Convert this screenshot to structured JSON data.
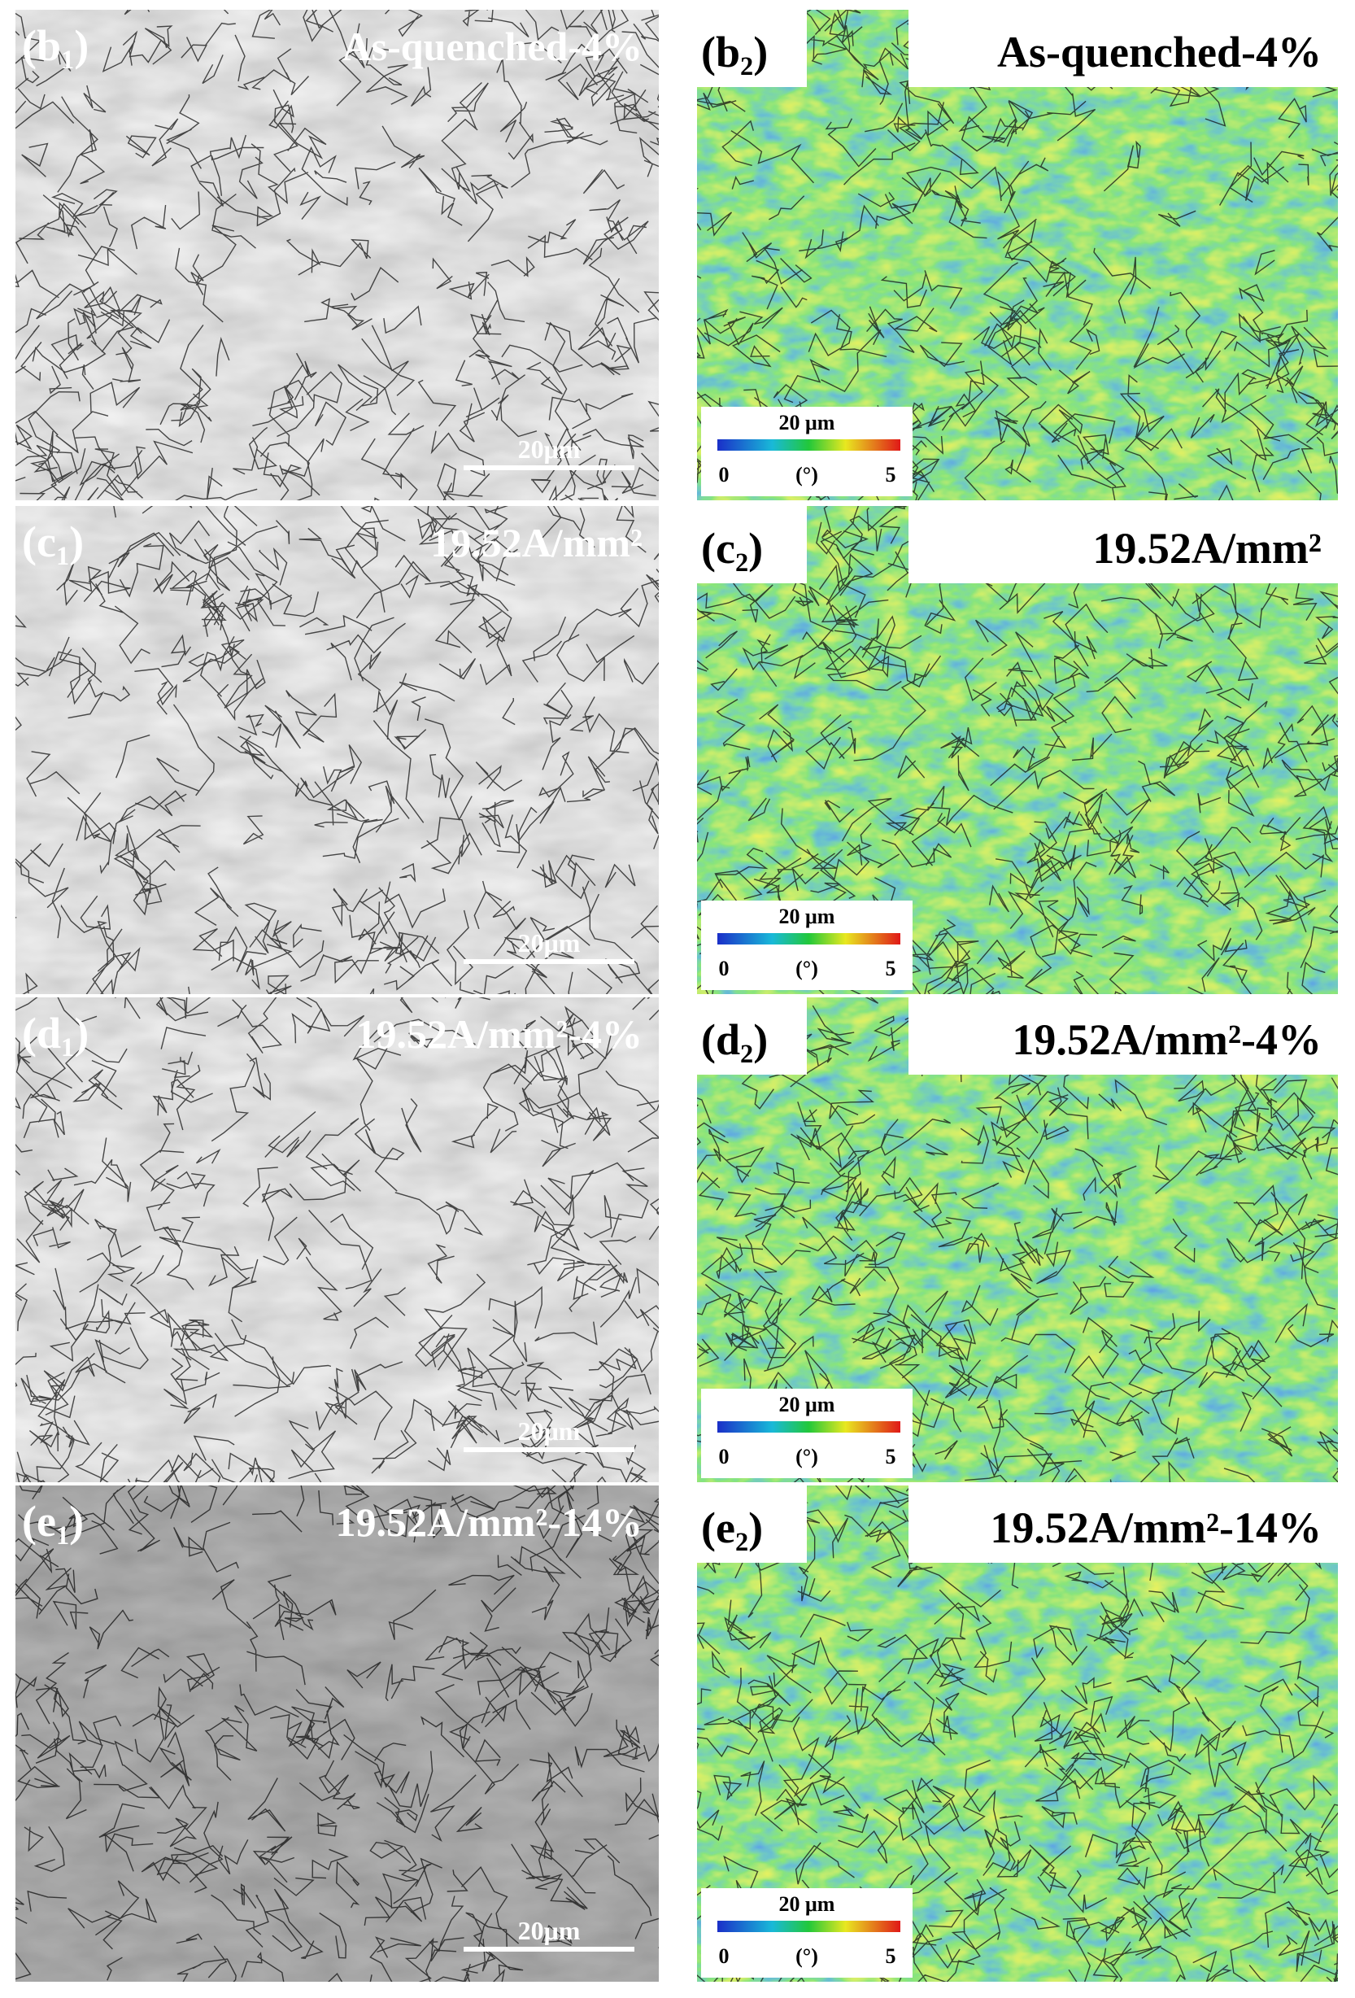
{
  "panels": [
    {
      "left": {
        "label": {
          "open": "(b",
          "sub": "1",
          "close": ")"
        },
        "title": "As-quenched-4%",
        "scale_bar": "20μm"
      },
      "right": {
        "label": {
          "open": "(b",
          "sub": "2",
          "close": ")"
        },
        "title": "As-quenched-4%",
        "scale_bar": "20 μm",
        "legend_min": "0",
        "legend_unit": "(°)",
        "legend_max": "5"
      }
    },
    {
      "left": {
        "label": {
          "open": "(c",
          "sub": "1",
          "close": ")"
        },
        "title": "19.52A/mm²",
        "scale_bar": "20μm"
      },
      "right": {
        "label": {
          "open": "(c",
          "sub": "2",
          "close": ")"
        },
        "title": "19.52A/mm²",
        "scale_bar": "20 μm",
        "legend_min": "0",
        "legend_unit": "(°)",
        "legend_max": "5"
      }
    },
    {
      "left": {
        "label": {
          "open": "(d",
          "sub": "1",
          "close": ")"
        },
        "title": "19.52A/mm²-4%",
        "scale_bar": "20μm"
      },
      "right": {
        "label": {
          "open": "(d",
          "sub": "2",
          "close": ")"
        },
        "title": "19.52A/mm²-4%",
        "scale_bar": "20 μm",
        "legend_min": "0",
        "legend_unit": "(°)",
        "legend_max": "5"
      }
    },
    {
      "left": {
        "label": {
          "open": "(e",
          "sub": "1",
          "close": ")"
        },
        "title": "19.52A/mm²-14%",
        "scale_bar": "20μm"
      },
      "right": {
        "label": {
          "open": "(e",
          "sub": "2",
          "close": ")"
        },
        "title": "19.52A/mm²-14%",
        "scale_bar": "20 μm",
        "legend_min": "0",
        "legend_unit": "(°)",
        "legend_max": "5"
      }
    }
  ]
}
